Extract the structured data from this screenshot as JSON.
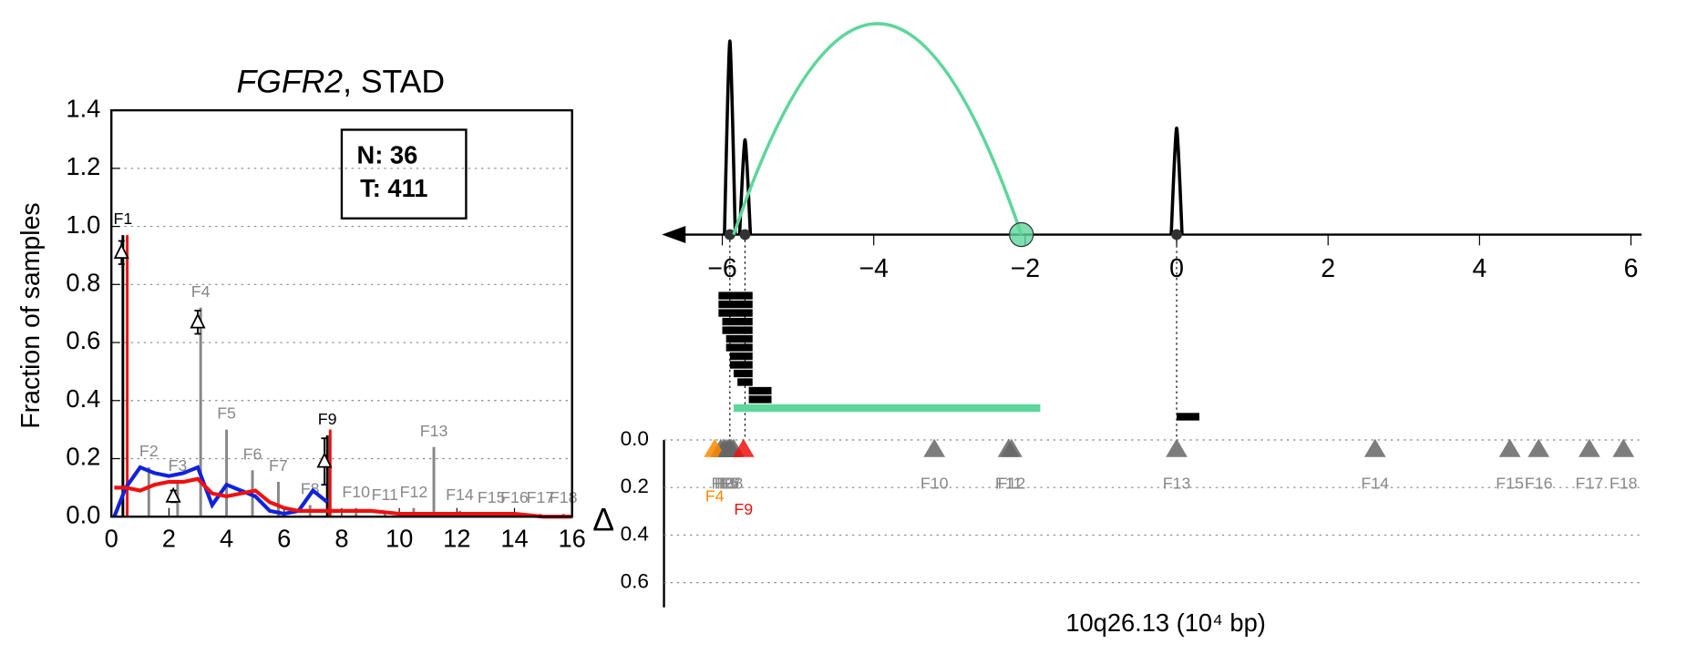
{
  "chart_data": [
    {
      "type": "fragment-coverage",
      "title_parts": [
        "FGFR2",
        ", STAD"
      ],
      "ylabel": "Fraction of samples",
      "xlim": [
        0,
        16
      ],
      "xticks": [
        0,
        2,
        4,
        6,
        8,
        10,
        12,
        14,
        16
      ],
      "ylim": [
        0,
        1.4
      ],
      "yticks": [
        {
          "value": 0,
          "label": "0.0"
        },
        {
          "value": 0.2,
          "label": "0.2"
        },
        {
          "value": 0.4,
          "label": "0.4"
        },
        {
          "value": 0.6,
          "label": "0.6"
        },
        {
          "value": 0.8,
          "label": "0.8"
        },
        {
          "value": 1.0,
          "label": "1.0"
        },
        {
          "value": 1.2,
          "label": "1.2"
        },
        {
          "value": 1.4,
          "label": "1.4"
        }
      ],
      "grid": true,
      "info_box": [
        "N: 36",
        "T: 411"
      ],
      "fragments": {
        "labels": [
          "F1",
          "F2",
          "F3",
          "F4",
          "F5",
          "F6",
          "F7",
          "F8",
          "F9",
          "F10",
          "F11",
          "F12",
          "F13",
          "F14",
          "F15",
          "F16",
          "F17",
          "F18"
        ],
        "x": [
          0.4,
          1.3,
          2.3,
          3.1,
          4.0,
          4.9,
          5.8,
          6.9,
          7.5,
          8.5,
          9.5,
          10.5,
          11.2,
          12.1,
          13.2,
          14.0,
          14.9,
          15.7
        ],
        "values": [
          0.97,
          0.17,
          0.12,
          0.72,
          0.3,
          0.16,
          0.12,
          0.04,
          0.28,
          0.03,
          0.02,
          0.03,
          0.24,
          0.02,
          0.01,
          0.01,
          0.01,
          0.01
        ],
        "colors": [
          "#000000",
          "#888888",
          "#888888",
          "#888888",
          "#888888",
          "#888888",
          "#888888",
          "#888888",
          "#000000",
          "#888888",
          "#888888",
          "#888888",
          "#888888",
          "#888888",
          "#888888",
          "#888888",
          "#888888",
          "#888888"
        ]
      },
      "highlight": {
        "x": [
          0.55,
          7.6
        ],
        "values": [
          0.97,
          0.3
        ],
        "color": "#ee1111"
      },
      "deltas": {
        "x": [
          0.35,
          2.15,
          3.0,
          7.4
        ],
        "values": [
          0.91,
          0.07,
          0.67,
          0.19
        ],
        "errors": [
          0.04,
          0.02,
          0.04,
          0.08
        ]
      },
      "series": [
        {
          "color": "#1122dd",
          "x": [
            0.1,
            0.5,
            1,
            1.5,
            2,
            2.5,
            3,
            3.5,
            4,
            4.5,
            5,
            5.5,
            6,
            6.5,
            7,
            7.5,
            8,
            9,
            10,
            11,
            12,
            13,
            14,
            15,
            16
          ],
          "values": [
            0.0,
            0.1,
            0.17,
            0.15,
            0.14,
            0.15,
            0.17,
            0.04,
            0.11,
            0.09,
            0.07,
            0.02,
            0.01,
            0.02,
            0.09,
            0.05,
            null,
            null,
            null,
            null,
            null,
            null,
            null,
            null,
            null
          ]
        },
        {
          "color": "#ee1111",
          "x": [
            0.1,
            0.5,
            1,
            1.5,
            2,
            2.5,
            3,
            3.5,
            4,
            4.5,
            5,
            5.5,
            6,
            6.5,
            7,
            7.5,
            8,
            9,
            10,
            11,
            12,
            13,
            14,
            15,
            16
          ],
          "values": [
            0.1,
            0.1,
            0.09,
            0.11,
            0.12,
            0.12,
            0.13,
            0.08,
            0.07,
            0.08,
            0.09,
            0.05,
            0.03,
            0.02,
            0.02,
            0.02,
            0.02,
            0.02,
            0.01,
            0.01,
            0.01,
            0.01,
            0.01,
            0.0,
            0.0
          ]
        }
      ]
    },
    {
      "type": "junction-track",
      "xlim": [
        -6.77,
        6.14
      ],
      "xticks": [
        {
          "value": -6,
          "label": "−6"
        },
        {
          "value": -4,
          "label": "−4"
        },
        {
          "value": -2,
          "label": "−2"
        },
        0,
        2,
        4,
        6
      ],
      "ylim": [
        0,
        1.1
      ],
      "peaks": {
        "x": [
          -5.9,
          -5.7,
          0
        ],
        "values": [
          1.0,
          0.49,
          0.55
        ]
      },
      "arc": {
        "from": -5.85,
        "to": -2.05,
        "value": 1.09,
        "color": "#5ed69b"
      },
      "reads": {
        "starts": [
          -6.05,
          -6.05,
          -6.05,
          -6.0,
          -6.0,
          -5.95,
          -5.95,
          -5.9,
          -5.9,
          -5.85,
          -5.8,
          -5.65,
          -5.65,
          -5.85,
          0.0
        ],
        "ends": [
          -5.6,
          -5.6,
          -5.6,
          -5.6,
          -5.6,
          -5.6,
          -5.6,
          -5.6,
          -5.6,
          -5.6,
          -5.6,
          -5.35,
          -5.35,
          -1.8,
          0.3
        ],
        "colors": [
          "#000000",
          "#000000",
          "#000000",
          "#000000",
          "#000000",
          "#000000",
          "#000000",
          "#000000",
          "#000000",
          "#000000",
          "#000000",
          "#000000",
          "#000000",
          "#5ed69b",
          "#000000"
        ]
      }
    },
    {
      "type": "fragment-delta",
      "ylabel": "Δ",
      "xlabel": "10q26.13 (10⁴ bp)",
      "xlim": [
        -6.77,
        6.14
      ],
      "ylim": [
        0,
        0.7
      ],
      "yticks": [
        {
          "value": 0,
          "label": "0.0"
        },
        {
          "value": 0.2,
          "label": "0.2"
        },
        {
          "value": 0.4,
          "label": "0.4"
        },
        {
          "value": 0.6,
          "label": "0.6"
        }
      ],
      "grid": true,
      "markers": {
        "labels": [
          "F1",
          "F2",
          "F3",
          "F4",
          "F5",
          "F6",
          "F7",
          "F8",
          "F9",
          "F10",
          "F11",
          "F12",
          "F13",
          "F14",
          "F15",
          "F16",
          "F17",
          "F18"
        ],
        "x": [
          -6.02,
          -5.98,
          -5.95,
          -6.1,
          -5.92,
          -5.9,
          -5.88,
          -5.85,
          -5.72,
          -3.2,
          -2.22,
          -2.18,
          0,
          2.62,
          4.4,
          4.78,
          5.45,
          5.9
        ],
        "values": [
          0.04,
          0.04,
          0.04,
          0.04,
          0.04,
          0.04,
          0.04,
          0.04,
          0.04,
          0.04,
          0.04,
          0.04,
          0.04,
          0.04,
          0.04,
          0.04,
          0.04,
          0.04
        ],
        "colors": [
          "#666666",
          "#666666",
          "#666666",
          "#ff8800",
          "#666666",
          "#666666",
          "#666666",
          "#666666",
          "#ee1111",
          "#666666",
          "#666666",
          "#666666",
          "#666666",
          "#666666",
          "#666666",
          "#666666",
          "#666666",
          "#666666"
        ]
      }
    }
  ]
}
